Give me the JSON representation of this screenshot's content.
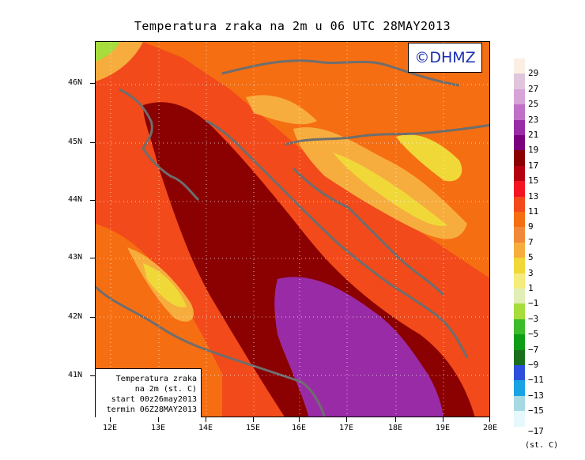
{
  "title": "Temperatura zraka na 2m u 06 UTC 28MAY2013",
  "logo_text": "©DHMZ",
  "info_box": {
    "line1": "Temperatura zraka",
    "line2": "na 2m (st. C)",
    "line3": "start 00z26may2013",
    "line4": "termin 06Z28MAY2013"
  },
  "lat_labels": [
    "46N",
    "45N",
    "44N",
    "43N",
    "42N",
    "41N"
  ],
  "lon_labels": [
    "12E",
    "13E",
    "14E",
    "15E",
    "16E",
    "17E",
    "18E",
    "19E",
    "20E"
  ],
  "legend": {
    "labels": [
      "29",
      "27",
      "25",
      "23",
      "21",
      "19",
      "17",
      "15",
      "13",
      "11",
      "9",
      "7",
      "5",
      "3",
      "1",
      "−1",
      "−3",
      "−5",
      "−7",
      "−9",
      "−11",
      "−13",
      "−15"
    ],
    "last_label": "−17",
    "unit": "(st. C)",
    "colors": [
      "#fbeee3",
      "#e0c6dc",
      "#d7a4d7",
      "#c070c8",
      "#9a2ba6",
      "#7b0080",
      "#8b0000",
      "#b50012",
      "#f31422",
      "#f24a1a",
      "#f66e12",
      "#f08a3a",
      "#f7ad3e",
      "#f0d838",
      "#f4ec7c",
      "#e1eeb6",
      "#a6dc3c",
      "#3cbc2a",
      "#0e9d16",
      "#1a6f1c",
      "#2d4fdc",
      "#17a3e4",
      "#a7d9e3",
      "#e6f8fb"
    ]
  }
}
